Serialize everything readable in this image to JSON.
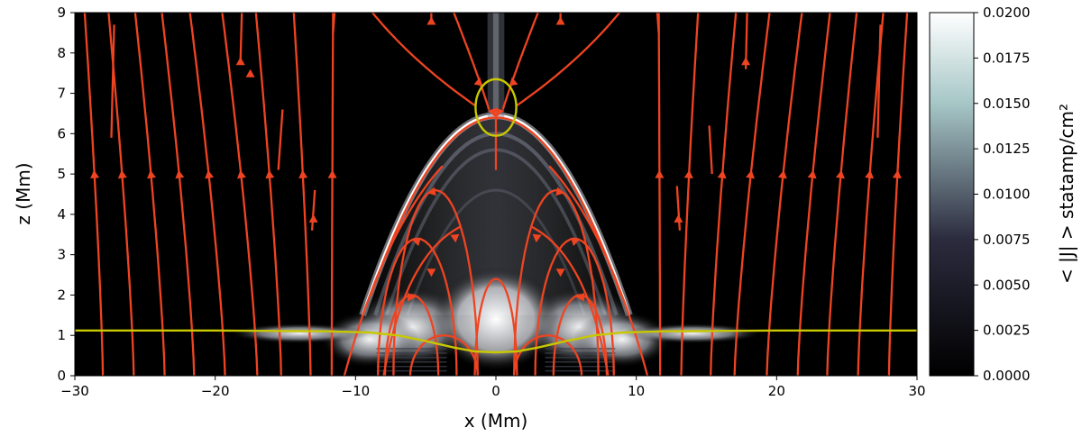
{
  "chart_data": {
    "type": "heatmap",
    "title": "",
    "xlabel": "x (Mm)",
    "ylabel": "z (Mm)",
    "xlim": [
      -30,
      30
    ],
    "ylim": [
      0,
      9
    ],
    "x_ticks": [
      -30,
      -20,
      -10,
      0,
      10,
      20,
      30
    ],
    "x_tick_labels": [
      "−30",
      "−20",
      "−10",
      "0",
      "10",
      "20",
      "30"
    ],
    "y_ticks": [
      0,
      1,
      2,
      3,
      4,
      5,
      6,
      7,
      8,
      9
    ],
    "y_tick_labels": [
      "0",
      "1",
      "2",
      "3",
      "4",
      "5",
      "6",
      "7",
      "8",
      "9"
    ],
    "colorbar": {
      "label": "< |J| > statamp/cm²",
      "range": [
        0.0,
        0.02
      ],
      "ticks": [
        0.0,
        0.0025,
        0.005,
        0.0075,
        0.01,
        0.0125,
        0.015,
        0.0175,
        0.02
      ],
      "tick_labels": [
        "0.0000",
        "0.0025",
        "0.0050",
        "0.0075",
        "0.0100",
        "0.0125",
        "0.0150",
        "0.0175",
        "0.0200"
      ],
      "colormap": "bone"
    },
    "field_line_color": "#ee4422",
    "contour_color": "#c8c800",
    "contour_line": {
      "x": [
        -30,
        -20,
        -12,
        -9,
        -7,
        -5,
        -3,
        -1.5,
        0,
        1.5,
        3,
        5,
        7,
        9,
        12,
        20,
        30
      ],
      "z": [
        1.12,
        1.12,
        1.1,
        1.07,
        1.0,
        0.86,
        0.7,
        0.6,
        0.58,
        0.6,
        0.7,
        0.86,
        1.0,
        1.07,
        1.1,
        1.12,
        1.12
      ]
    },
    "highlight_ellipse": {
      "cx": 0,
      "cz": 6.65,
      "rx": 1.45,
      "rz": 0.7
    },
    "current_sheet_arc": {
      "peak_z": 6.45,
      "half_width": 9.5,
      "base_z": 1.5
    }
  }
}
